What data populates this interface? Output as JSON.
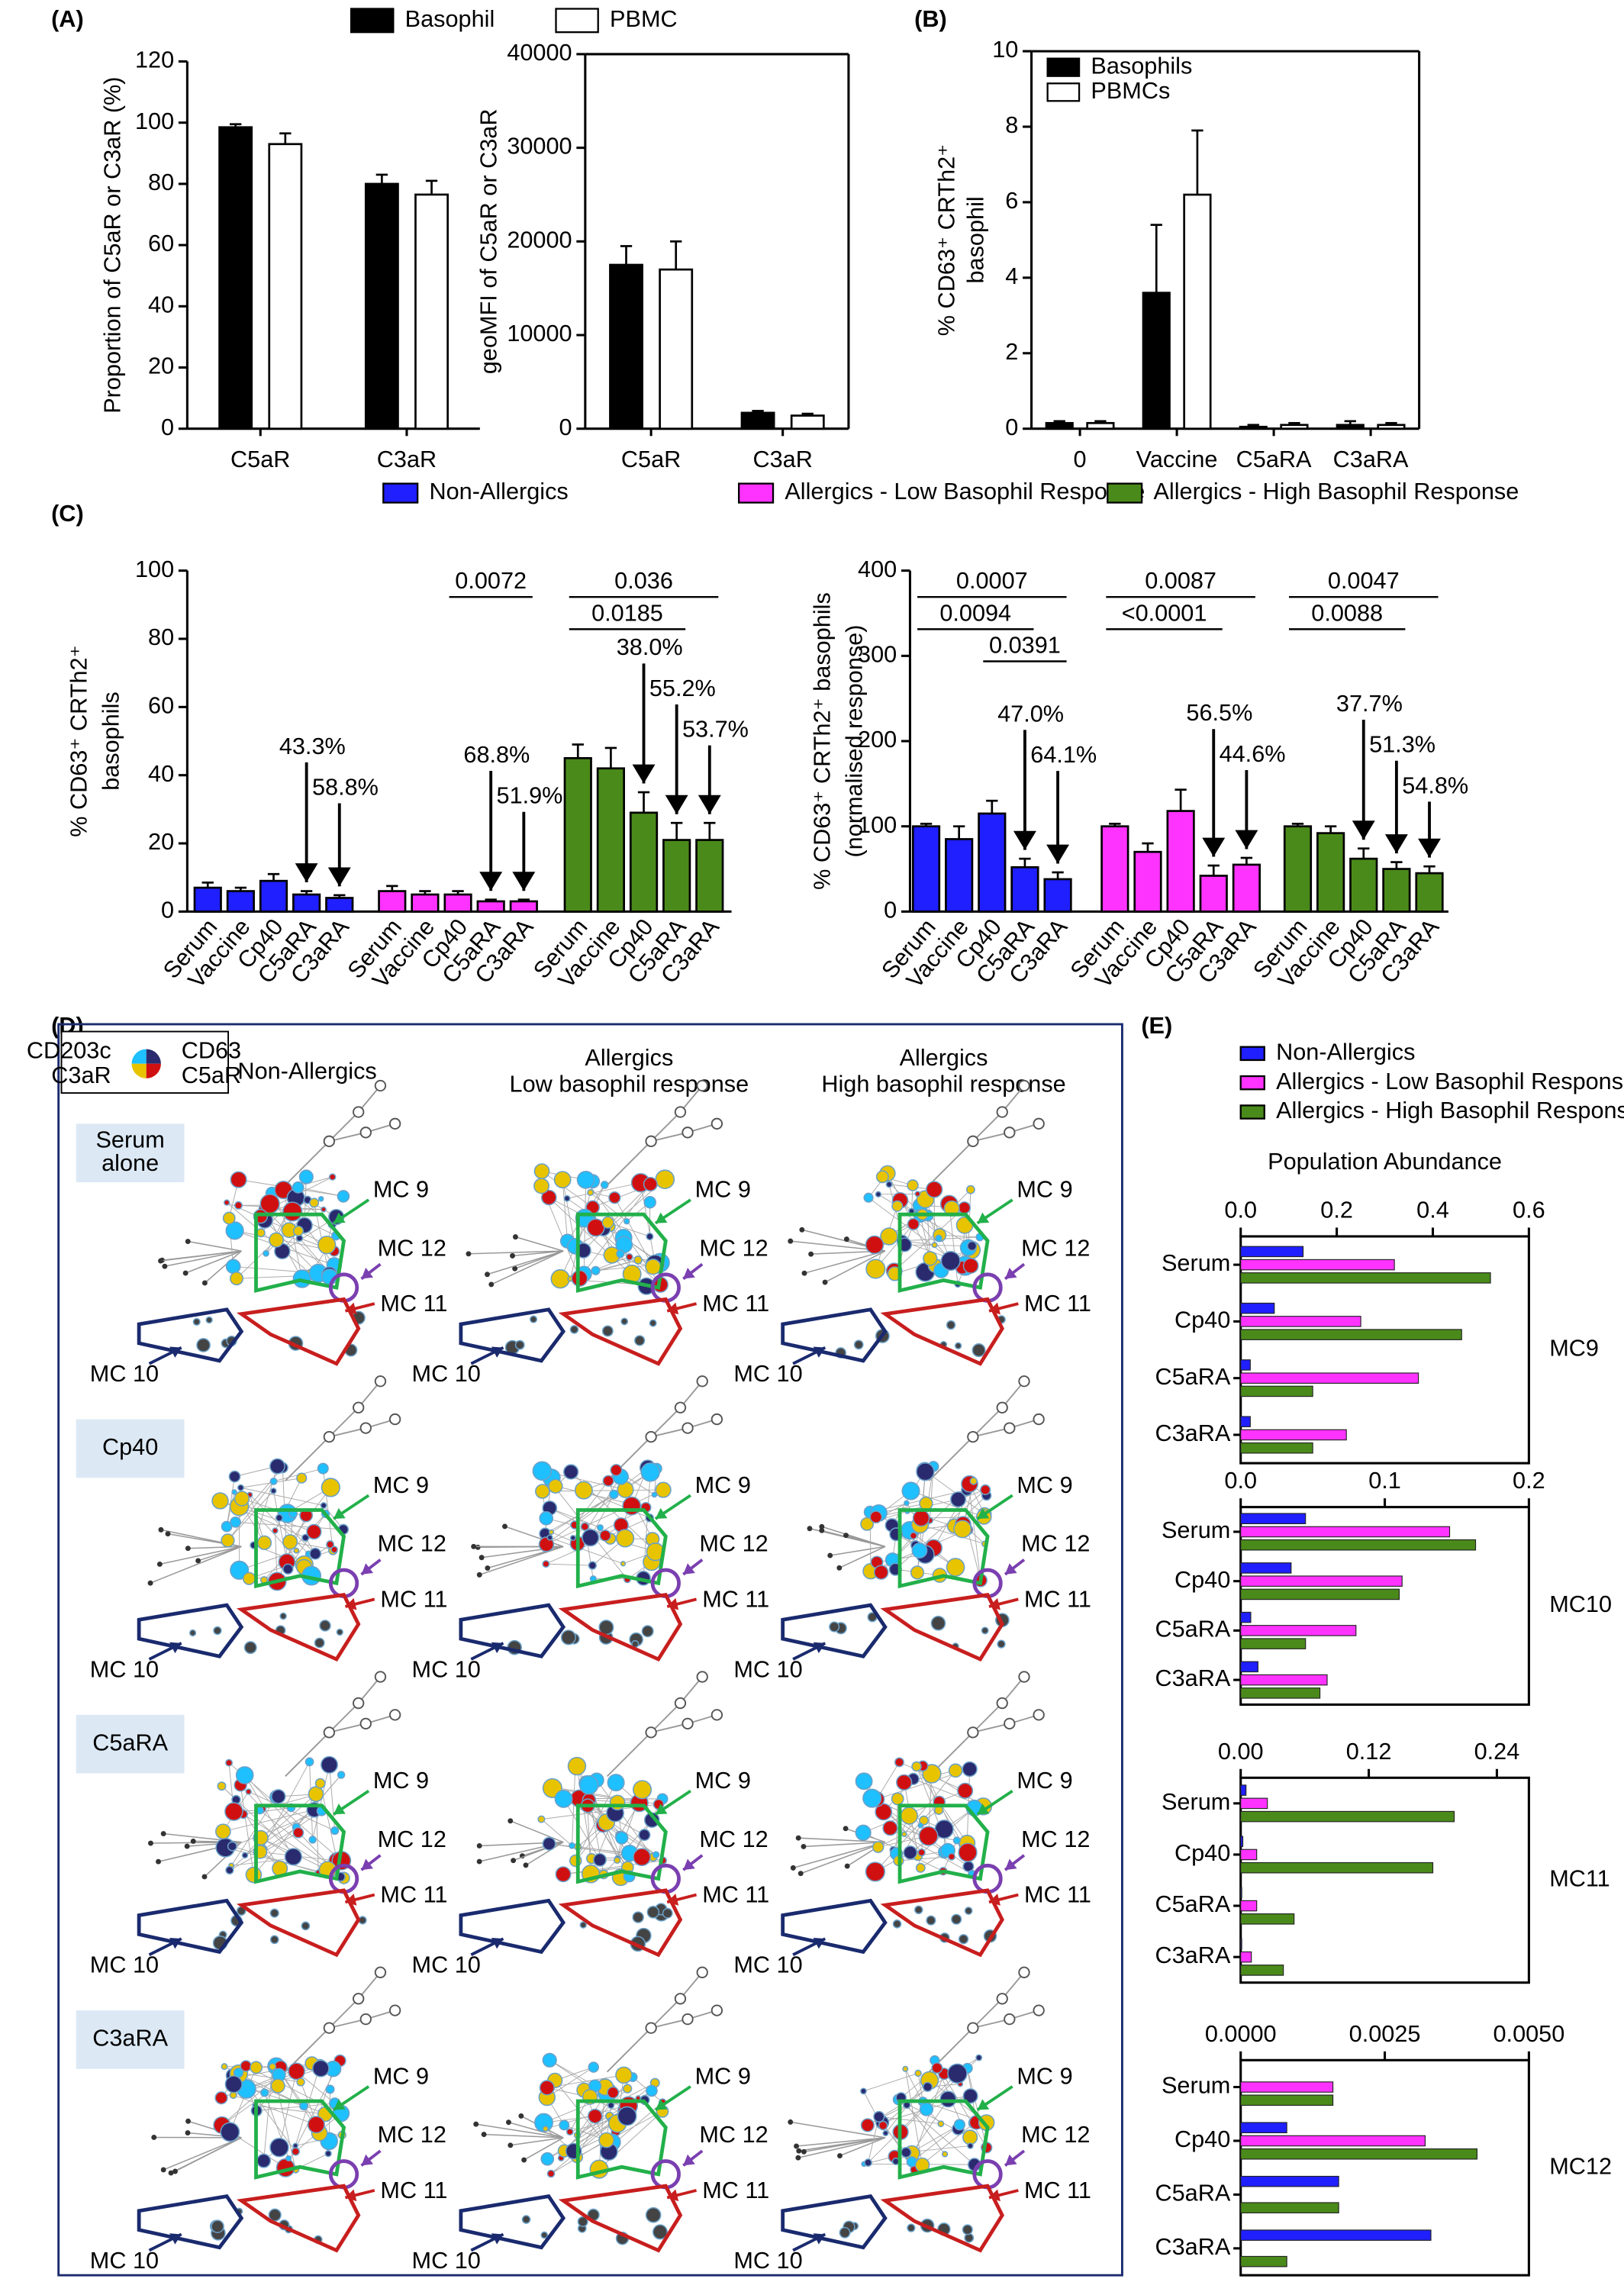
{
  "panel_labels": [
    "(A)",
    "(B)",
    "(C)",
    "(D)",
    "(E)"
  ],
  "chart_data": [
    {
      "type": "bar",
      "ylabel": "Proportion of C5aR or C3aR (%)",
      "categories": [
        "C5aR",
        "C3aR"
      ],
      "series": [
        {
          "name": "Basophil",
          "color": "#000000",
          "values": [
            98.5,
            80
          ],
          "errors": [
            1,
            3
          ]
        },
        {
          "name": "PBMC",
          "color": "#ffffff",
          "values": [
            93,
            76.5
          ],
          "errors": [
            3.5,
            4.5
          ]
        }
      ],
      "ylim": [
        0,
        120
      ],
      "yticks": [
        0,
        20,
        40,
        60,
        80,
        100,
        120
      ]
    },
    {
      "type": "bar",
      "ylabel": "geoMFI of C5aR or C3aR",
      "categories": [
        "C5aR",
        "C3aR"
      ],
      "series": [
        {
          "color": "#000000",
          "values": [
            17500,
            1700
          ],
          "errors": [
            2000,
            200
          ]
        },
        {
          "color": "#ffffff",
          "values": [
            17000,
            1400
          ],
          "errors": [
            3000,
            200
          ]
        }
      ],
      "ylim": [
        0,
        40000
      ],
      "yticks": [
        0,
        10000,
        20000,
        30000,
        40000
      ]
    },
    {
      "type": "bar",
      "ylabel": [
        "% CD63⁺ CRTh2⁺",
        "basophil"
      ],
      "categories": [
        "0",
        "Vaccine",
        "C5aRA",
        "C3aRA"
      ],
      "series": [
        {
          "name": "Basophils",
          "color": "#000000",
          "values": [
            0.15,
            3.6,
            0.05,
            0.1
          ],
          "errors": [
            0.05,
            1.8,
            0.05,
            0.1
          ]
        },
        {
          "name": "PBMCs",
          "color": "#ffffff",
          "values": [
            0.15,
            6.2,
            0.1,
            0.1
          ],
          "errors": [
            0.05,
            1.7,
            0.05,
            0.05
          ]
        }
      ],
      "ylim": [
        0,
        10
      ],
      "yticks": [
        0,
        2,
        4,
        6,
        8,
        10
      ]
    },
    {
      "type": "bar",
      "ylabel": [
        "% CD63⁺ CRTh2⁺",
        "basophils"
      ],
      "categories": [
        "Serum",
        "Vaccine",
        "Cp40",
        "C5aRA",
        "C3aRA"
      ],
      "series": [
        {
          "name": "Non-Allergics",
          "color": "#1f1fff",
          "values": [
            7,
            6,
            9,
            5,
            4
          ],
          "errors": [
            1.5,
            1,
            2,
            1,
            0.8
          ],
          "percent_labels": [
            {
              "text": "43.3%",
              "category": "C5aRA"
            },
            {
              "text": "58.8%",
              "category": "C3aRA"
            }
          ]
        },
        {
          "name": "Allergics - Low Basophil Response",
          "color": "#ff33ff",
          "values": [
            6,
            5,
            5,
            3,
            3
          ],
          "errors": [
            1.5,
            1,
            1,
            0.5,
            0.5
          ],
          "brackets": [
            {
              "text": "0.0072",
              "from": "Cp40",
              "to": "C3aRA"
            }
          ],
          "percent_labels": [
            {
              "text": "68.8%",
              "category": "C5aRA"
            },
            {
              "text": "51.9%",
              "category": "C3aRA"
            }
          ]
        },
        {
          "name": "Allergics - High Basophil Response",
          "color": "#4a8a1a",
          "values": [
            45,
            42,
            29,
            21,
            21
          ],
          "errors": [
            4,
            6,
            6,
            5,
            5
          ],
          "brackets": [
            {
              "text": "0.036",
              "from": "Serum",
              "to": "C3aRA"
            },
            {
              "text": "0.0185",
              "from": "Serum",
              "to": "C5aRA"
            }
          ],
          "percent_labels": [
            {
              "text": "38.0%",
              "category": "Cp40"
            },
            {
              "text": "55.2%",
              "category": "C5aRA"
            },
            {
              "text": "53.7%",
              "category": "C3aRA"
            }
          ]
        }
      ],
      "ylim": [
        0,
        100
      ],
      "yticks": [
        0,
        20,
        40,
        60,
        80,
        100
      ]
    },
    {
      "type": "bar",
      "ylabel": [
        "% CD63⁺ CRTh2⁺ basophils",
        "(normalised response)"
      ],
      "categories": [
        "Serum",
        "Vaccine",
        "Cp40",
        "C5aRA",
        "C3aRA"
      ],
      "series": [
        {
          "color": "#1f1fff",
          "values": [
            100,
            85,
            115,
            52,
            38
          ],
          "errors": [
            3,
            15,
            15,
            10,
            8
          ],
          "brackets": [
            {
              "text": "0.0007",
              "from": "Serum",
              "to": "C3aRA"
            },
            {
              "text": "0.0094",
              "from": "Serum",
              "to": "C5aRA"
            },
            {
              "text": "0.0391",
              "from": "Cp40",
              "to": "C3aRA"
            }
          ],
          "percent_labels": [
            {
              "text": "47.0%",
              "category": "C5aRA"
            },
            {
              "text": "64.1%",
              "category": "C3aRA"
            }
          ]
        },
        {
          "color": "#ff33ff",
          "values": [
            100,
            70,
            118,
            42,
            55
          ],
          "errors": [
            3,
            10,
            25,
            12,
            8
          ],
          "brackets": [
            {
              "text": "0.0087",
              "from": "Serum",
              "to": "C3aRA"
            },
            {
              "text": "<0.0001",
              "from": "Serum",
              "to": "C5aRA"
            }
          ],
          "percent_labels": [
            {
              "text": "56.5%",
              "category": "C5aRA"
            },
            {
              "text": "44.6%",
              "category": "C3aRA"
            }
          ]
        },
        {
          "color": "#4a8a1a",
          "values": [
            100,
            92,
            62,
            50,
            45
          ],
          "errors": [
            3,
            8,
            12,
            8,
            8
          ],
          "brackets": [
            {
              "text": "0.0047",
              "from": "Serum",
              "to": "C3aRA"
            },
            {
              "text": "0.0088",
              "from": "Serum",
              "to": "C5aRA"
            }
          ],
          "percent_labels": [
            {
              "text": "37.7%",
              "category": "Cp40"
            },
            {
              "text": "51.3%",
              "category": "C5aRA"
            },
            {
              "text": "54.8%",
              "category": "C3aRA"
            }
          ]
        }
      ],
      "ylim": [
        0,
        400
      ],
      "yticks": [
        0,
        100,
        200,
        300,
        400
      ]
    },
    {
      "type": "hbar",
      "title": "Population Abundance",
      "ylabel": "MC9",
      "categories": [
        "Serum",
        "Cp40",
        "C5aRA",
        "C3aRA"
      ],
      "series": [
        {
          "name": "Non-Allergics",
          "color": "#1f1fff",
          "values": [
            0.13,
            0.07,
            0.02,
            0.02
          ]
        },
        {
          "name": "Allergics - Low Basophil Response",
          "color": "#ff33ff",
          "values": [
            0.32,
            0.25,
            0.37,
            0.22
          ]
        },
        {
          "name": "Allergics - High Basophil Response",
          "color": "#4a8a1a",
          "values": [
            0.52,
            0.46,
            0.15,
            0.15
          ]
        }
      ],
      "xlim": [
        0,
        0.6
      ],
      "xticks": [
        {
          "value": 0,
          "label": "0.0"
        },
        0.2,
        0.4,
        0.6
      ]
    },
    {
      "type": "hbar",
      "ylabel": "MC10",
      "categories": [
        "Serum",
        "Cp40",
        "C5aRA",
        "C3aRA"
      ],
      "series": [
        {
          "color": "#1f1fff",
          "values": [
            0.045,
            0.035,
            0.007,
            0.012
          ]
        },
        {
          "color": "#ff33ff",
          "values": [
            0.145,
            0.112,
            0.08,
            0.06
          ]
        },
        {
          "color": "#4a8a1a",
          "values": [
            0.163,
            0.11,
            0.045,
            0.055
          ]
        }
      ],
      "xlim": [
        0,
        0.2
      ],
      "xticks": [
        {
          "value": 0,
          "label": "0.0"
        },
        0.1,
        0.2
      ]
    },
    {
      "type": "hbar",
      "ylabel": "MC11",
      "categories": [
        "Serum",
        "Cp40",
        "C5aRA",
        "C3aRA"
      ],
      "series": [
        {
          "color": "#1f1fff",
          "values": [
            0.005,
            0.002,
            0.001,
            0.001
          ]
        },
        {
          "color": "#ff33ff",
          "values": [
            0.025,
            0.015,
            0.015,
            0.01
          ]
        },
        {
          "color": "#4a8a1a",
          "values": [
            0.2,
            0.18,
            0.05,
            0.04
          ]
        }
      ],
      "xlim": [
        0,
        0.27
      ],
      "xticks": [
        {
          "value": 0,
          "label": "0.00"
        },
        0.12,
        0.24
      ]
    },
    {
      "type": "hbar",
      "ylabel": "MC12",
      "categories": [
        "Serum",
        "Cp40",
        "C5aRA",
        "C3aRA"
      ],
      "series": [
        {
          "color": "#1f1fff",
          "values": [
            0,
            0.0008,
            0.0017,
            0.0033
          ]
        },
        {
          "color": "#ff33ff",
          "values": [
            0.0016,
            0.0032,
            0,
            0
          ]
        },
        {
          "color": "#4a8a1a",
          "values": [
            0.0016,
            0.0041,
            0.0017,
            0.0008
          ]
        }
      ],
      "xlim": [
        0,
        0.005
      ],
      "xticks": [
        {
          "value": 0,
          "label": "0.0000"
        },
        0.0025,
        {
          "value": 0.005,
          "label": "0.0050"
        }
      ]
    }
  ],
  "panel_d": {
    "legend": [
      "CD203c",
      "CD63",
      "C3aR",
      "C5aR"
    ],
    "columns": [
      [
        "Non-Allergics"
      ],
      [
        "Allergics",
        "Low basophil response"
      ],
      [
        "Allergics",
        "High basophil response"
      ]
    ],
    "rows": [
      [
        "Serum",
        "alone"
      ],
      [
        "Cp40"
      ],
      [
        "C5aRA"
      ],
      [
        "C3aRA"
      ]
    ],
    "clusters": [
      "MC 9",
      "MC 12",
      "MC 11",
      "MC 10"
    ]
  }
}
